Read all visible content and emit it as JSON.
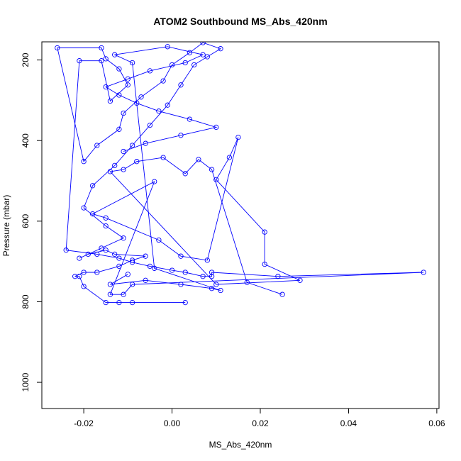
{
  "chart_data": {
    "type": "line",
    "title": "ATOM2 Southbound MS_Abs_420nm",
    "xlabel": "MS_Abs_420nm",
    "ylabel": "Pressure (mbar)",
    "xlim": [
      -0.0295,
      0.0605
    ],
    "ylim": [
      1065,
      155
    ],
    "y_reversed": true,
    "x_ticks": [
      -0.02,
      0.0,
      0.02,
      0.04,
      0.06
    ],
    "x_tick_labels": [
      "-0.02",
      "0.00",
      "0.02",
      "0.04",
      "0.06"
    ],
    "y_ticks": [
      200,
      400,
      600,
      800,
      1000
    ],
    "y_tick_labels": [
      "200",
      "400",
      "600",
      "800",
      "1000"
    ],
    "grid": false,
    "legend": "none",
    "marker": "open-circle",
    "color": "#0000ff",
    "series": [
      {
        "x": [
          0.003,
          -0.009,
          -0.012,
          -0.015,
          -0.02,
          -0.021,
          -0.022,
          -0.02,
          -0.017,
          -0.012,
          -0.009,
          -0.006,
          -0.013,
          -0.015,
          -0.019,
          -0.021,
          -0.016,
          -0.011,
          -0.015,
          -0.02,
          -0.018,
          -0.013,
          -0.009,
          -0.005,
          -0.001,
          0.002,
          0.005,
          0.008,
          0.011,
          0.007,
          0.004,
          0.0,
          -0.002,
          -0.007,
          -0.011,
          -0.012,
          -0.017,
          -0.02,
          -0.026,
          -0.016,
          -0.015,
          -0.012,
          -0.01,
          -0.014,
          -0.016,
          -0.021,
          -0.024,
          -0.017,
          -0.012,
          -0.009,
          -0.005,
          0.0,
          0.003,
          0.007,
          0.009,
          0.009,
          0.024,
          0.057,
          -0.009,
          -0.011,
          -0.014,
          -0.004,
          -0.018,
          -0.015,
          -0.003,
          0.002,
          0.008,
          0.015,
          0.013,
          0.01,
          0.021,
          0.021,
          0.029,
          0.01,
          -0.014,
          -0.011,
          -0.008,
          -0.002,
          0.003,
          0.006,
          0.009,
          0.017,
          0.025
        ],
        "y": [
          802,
          802,
          802,
          802,
          762,
          737,
          737,
          727,
          727,
          712,
          697,
          687,
          682,
          672,
          682,
          692,
          667,
          642,
          612,
          567,
          512,
          462,
          412,
          362,
          312,
          262,
          212,
          192,
          172,
          157,
          182,
          212,
          252,
          292,
          332,
          372,
          412,
          452,
          170,
          170,
          197,
          222,
          262,
          302,
          202,
          202,
          672,
          682,
          692,
          702,
          712,
          722,
          727,
          737,
          737,
          727,
          737,
          727,
          757,
          782,
          782,
          502,
          582,
          592,
          647,
          687,
          697,
          392,
          442,
          497,
          627,
          707,
          747,
          757,
          477,
          472,
          452,
          442,
          482,
          447,
          472,
          752,
          782
        ]
      },
      {
        "x": [
          -0.01,
          -0.014,
          -0.006,
          0.002,
          0.009,
          0.011,
          -0.004,
          -0.009,
          -0.013,
          -0.001,
          0.007,
          0.003,
          -0.005,
          -0.01,
          -0.015,
          -0.012,
          -0.008,
          -0.003,
          0.004,
          0.01,
          0.002,
          -0.006,
          -0.011
        ],
        "y": [
          732,
          757,
          747,
          757,
          767,
          772,
          717,
          207,
          187,
          167,
          187,
          207,
          227,
          247,
          267,
          287,
          307,
          327,
          347,
          367,
          387,
          407,
          427
        ]
      }
    ]
  }
}
